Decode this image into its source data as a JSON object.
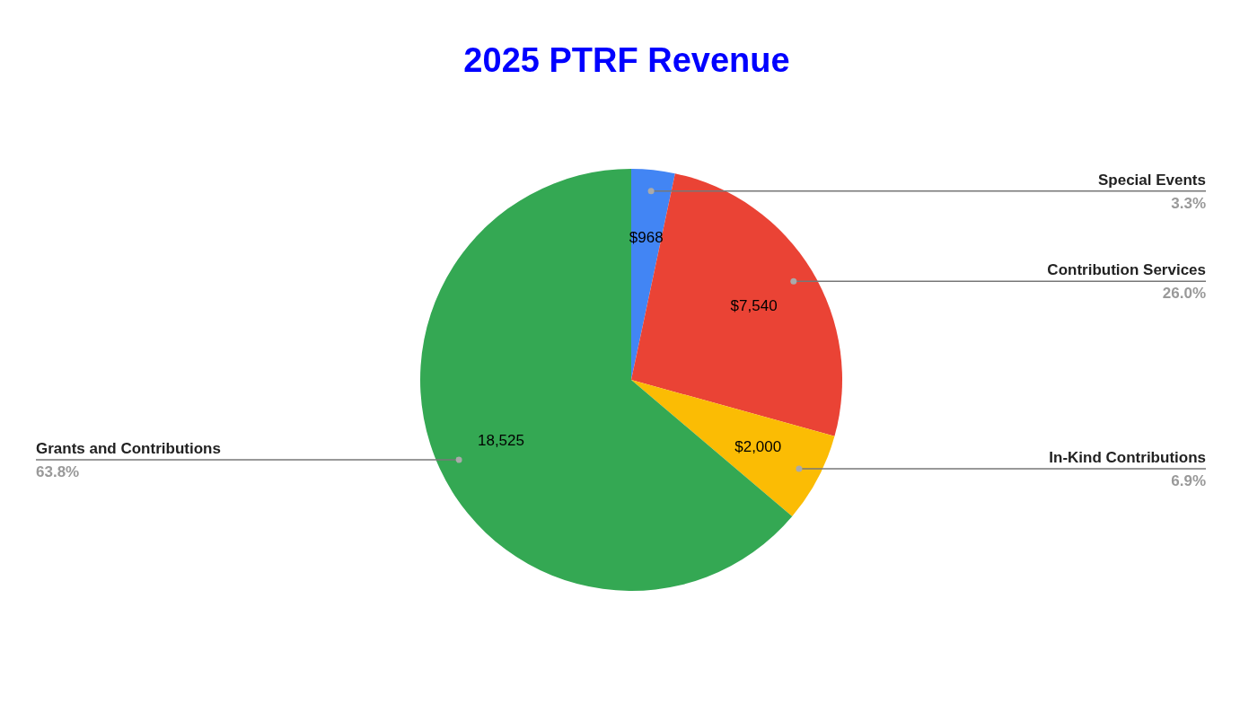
{
  "chart_data": {
    "type": "pie",
    "title": "2025 PTRF Revenue",
    "categories": [
      "Special Events",
      "Contribution Services",
      "In-Kind Contributions",
      "Grants and Contributions"
    ],
    "values": [
      968,
      7540,
      2000,
      18525
    ],
    "colors": [
      "#4285f4",
      "#ea4335",
      "#fbbc04",
      "#34a853"
    ],
    "value_labels": [
      "$968",
      "$7,540",
      "$2,000",
      "18,525"
    ],
    "annotations": [
      "3.3%",
      "26.0%",
      "6.9%",
      "63.8%"
    ],
    "legend": false
  }
}
